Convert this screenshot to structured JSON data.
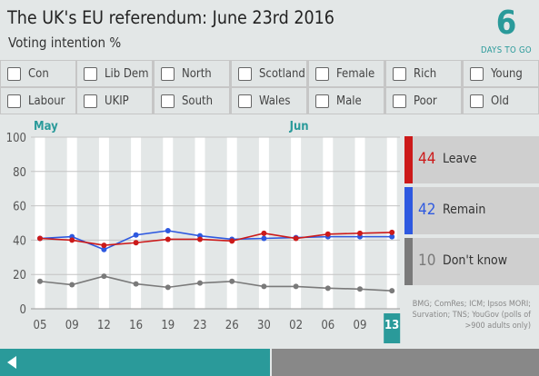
{
  "header": {
    "title": "The UK's EU referendum: June 23rd 2016",
    "subtitle": "Voting intention %",
    "countdown_value": "6",
    "countdown_label": "DAYS TO GO"
  },
  "filters": [
    {
      "label": "Con",
      "checked": false
    },
    {
      "label": "Lib Dem",
      "checked": false
    },
    {
      "label": "North",
      "checked": false
    },
    {
      "label": "Scotland",
      "checked": false
    },
    {
      "label": "Female",
      "checked": false
    },
    {
      "label": "Rich",
      "checked": false
    },
    {
      "label": "Young",
      "checked": false
    },
    {
      "label": "Labour",
      "checked": false
    },
    {
      "label": "UKIP",
      "checked": false
    },
    {
      "label": "South",
      "checked": false
    },
    {
      "label": "Wales",
      "checked": false
    },
    {
      "label": "Male",
      "checked": false
    },
    {
      "label": "Poor",
      "checked": false
    },
    {
      "label": "Old",
      "checked": false
    }
  ],
  "legend": [
    {
      "value": "44",
      "label": "Leave",
      "color": "#cc1a1a"
    },
    {
      "value": "42",
      "label": "Remain",
      "color": "#2e59e0"
    },
    {
      "value": "10",
      "label": "Don't know",
      "color": "#7a7a7a"
    }
  ],
  "source": "BMG; ComRes; ICM; Ipsos MORI; Survation; TNS; YouGov (polls of >900 adults only)",
  "colors": {
    "accent": "#2a9a9a",
    "leave": "#cc1a1a",
    "remain": "#2e59e0",
    "dont_know": "#7a7a7a"
  },
  "timeline": {
    "progress": 0.5
  },
  "chart_data": {
    "type": "line",
    "month_labels": [
      {
        "label": "May",
        "at": "05"
      },
      {
        "label": "Jun",
        "at": "02"
      }
    ],
    "x_ticks": [
      "05",
      "09",
      "12",
      "16",
      "19",
      "23",
      "26",
      "30",
      "02",
      "06",
      "09",
      "13"
    ],
    "highlighted_tick": "13",
    "ylim": [
      0,
      100
    ],
    "y_ticks": [
      0,
      20,
      40,
      60,
      80,
      100
    ],
    "grid": true,
    "series": [
      {
        "name": "Leave",
        "color": "#cc1a1a",
        "values": [
          41,
          40,
          37,
          38.5,
          40.5,
          40.5,
          39.5,
          44,
          41,
          43.5,
          44,
          44.5
        ]
      },
      {
        "name": "Remain",
        "color": "#2e59e0",
        "values": [
          41,
          42,
          34.5,
          43,
          45.5,
          42.5,
          40.5,
          41,
          41.5,
          42,
          42,
          42
        ]
      },
      {
        "name": "Don't know",
        "color": "#7a7a7a",
        "values": [
          16,
          14,
          19,
          14.5,
          12.5,
          15,
          16,
          13,
          13,
          12,
          11.5,
          10.5
        ]
      }
    ]
  }
}
